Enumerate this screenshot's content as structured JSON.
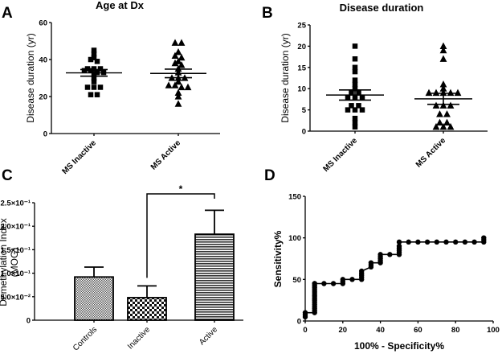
{
  "panels": {
    "A": "A",
    "B": "B",
    "C": "C",
    "D": "D"
  },
  "chart_data": [
    {
      "id": "A",
      "type": "scatter",
      "title": "Age at Dx",
      "xlabel": "",
      "ylabel": "Disease duration (yr)",
      "ylim": [
        0,
        60
      ],
      "yticks": [
        0,
        20,
        40,
        60
      ],
      "categories": [
        "MS Inactive",
        "MS Active"
      ],
      "series": [
        {
          "name": "MS Inactive",
          "marker": "square",
          "values": [
            45,
            43,
            41,
            40,
            39,
            35,
            35,
            35,
            34,
            34,
            33,
            33,
            32,
            30,
            28,
            25,
            25,
            25,
            21,
            21
          ],
          "mean": 32.8,
          "sem_low": 31.0,
          "sem_high": 34.6
        },
        {
          "name": "MS Active",
          "marker": "triangle",
          "values": [
            49,
            49,
            44,
            42,
            41,
            39,
            38,
            37,
            35,
            33,
            30,
            30,
            30,
            28,
            26,
            26,
            25,
            25,
            22,
            20,
            16
          ],
          "mean": 32.5,
          "sem_low": 30.2,
          "sem_high": 34.8
        }
      ]
    },
    {
      "id": "B",
      "type": "scatter",
      "title": "Disease duration",
      "xlabel": "",
      "ylabel": "Disease duration (yr)",
      "ylim": [
        0,
        25
      ],
      "yticks": [
        0,
        5,
        10,
        15,
        20,
        25
      ],
      "categories": [
        "MS Inactive",
        "MS Active"
      ],
      "series": [
        {
          "name": "MS Inactive",
          "marker": "square",
          "values": [
            20,
            17,
            15,
            14,
            12,
            11,
            10,
            9,
            9,
            8,
            8,
            8,
            6,
            6,
            5,
            5,
            5,
            3,
            2,
            1
          ],
          "mean": 8.5,
          "sem_low": 7.3,
          "sem_high": 9.7
        },
        {
          "name": "MS Active",
          "marker": "triangle",
          "values": [
            20,
            19,
            17,
            11,
            10,
            9,
            9,
            9,
            9,
            9,
            6,
            6,
            6,
            4,
            4,
            2,
            2,
            1,
            1,
            1
          ],
          "mean": 7.6,
          "sem_low": 6.3,
          "sem_high": 8.9
        }
      ]
    },
    {
      "id": "C",
      "type": "bar",
      "title": "",
      "xlabel": "",
      "ylabel": "Demethylation  Index (MOG)",
      "ylabel_lines": [
        "Demethylation  Index",
        "(MOG)"
      ],
      "ylim": [
        0,
        0.25
      ],
      "yticks": [
        0,
        0.05,
        0.1,
        0.15,
        0.2,
        0.25
      ],
      "ytick_labels": [
        "0",
        "5.0×10⁻²",
        "1.0×10⁻¹",
        "1.5×10⁻¹",
        "2.0×10⁻¹",
        "2.5×10⁻¹"
      ],
      "categories": [
        "Controls",
        "Inactive",
        "Active"
      ],
      "values": [
        0.092,
        0.048,
        0.183
      ],
      "error_upper": [
        0.113,
        0.073,
        0.234
      ],
      "patterns": [
        "fine-check",
        "coarse-check",
        "horizontal-lines"
      ],
      "annotation": {
        "text": "*",
        "between": [
          "Inactive",
          "Active"
        ]
      }
    },
    {
      "id": "D",
      "type": "line",
      "title": "",
      "xlabel": "100% - Specificity%",
      "ylabel": "Sensitivity%",
      "xlim": [
        0,
        100
      ],
      "ylim": [
        0,
        150
      ],
      "xticks": [
        0,
        20,
        40,
        60,
        80,
        100
      ],
      "yticks": [
        0,
        50,
        100,
        150
      ],
      "series": [
        {
          "name": "ROC",
          "x": [
            0,
            0,
            0,
            5,
            5,
            5,
            5,
            5,
            5,
            5,
            5,
            5,
            5,
            5,
            5,
            5,
            5,
            5,
            5,
            10,
            15,
            20,
            20,
            20,
            25,
            30,
            30,
            30,
            30,
            30,
            35,
            35,
            35,
            40,
            40,
            40,
            40,
            40,
            45,
            50,
            50,
            50,
            50,
            50,
            50,
            55,
            60,
            65,
            70,
            75,
            80,
            85,
            90,
            95,
            95,
            95
          ],
          "y": [
            5,
            7.5,
            10,
            10,
            12.5,
            15,
            17.5,
            20,
            22.5,
            25,
            27.5,
            30,
            32.5,
            35,
            37.5,
            40,
            42.5,
            45,
            45,
            45,
            45,
            45,
            47.5,
            50,
            50,
            50,
            52.5,
            55,
            57.5,
            60,
            65,
            67.5,
            70,
            70,
            72.5,
            75,
            77.5,
            80,
            80,
            80,
            82.5,
            85,
            87.5,
            90,
            95,
            95,
            95,
            95,
            95,
            95,
            95,
            95,
            95,
            95,
            97.5,
            100
          ]
        }
      ]
    }
  ]
}
